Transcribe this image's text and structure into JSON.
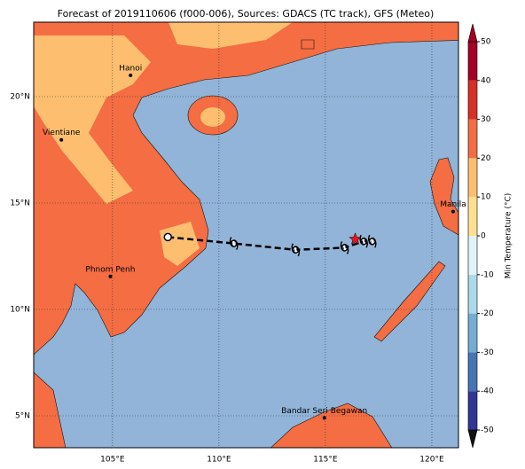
{
  "title": "Forecast of 2019110606 (f000-006), Sources: GDACS (TC track), GFS (Meteo)",
  "map": {
    "xlim": [
      101.3,
      121.25
    ],
    "ylim": [
      3.5,
      23.5
    ],
    "xticks": [
      {
        "value": 105,
        "label": "105°E"
      },
      {
        "value": 110,
        "label": "110°E"
      },
      {
        "value": 115,
        "label": "115°E"
      },
      {
        "value": 120,
        "label": "120°E"
      }
    ],
    "yticks": [
      {
        "value": 5,
        "label": "5°N"
      },
      {
        "value": 10,
        "label": "10°N"
      },
      {
        "value": 15,
        "label": "15°N"
      },
      {
        "value": 20,
        "label": "20°N"
      }
    ],
    "grid": true,
    "ocean_color": "#91b4d8",
    "cities": [
      {
        "name": "Hanoi",
        "lon": 105.85,
        "lat": 21.0
      },
      {
        "name": "Vientiane",
        "lon": 102.6,
        "lat": 17.97
      },
      {
        "name": "Phnom Penh",
        "lon": 104.9,
        "lat": 11.55
      },
      {
        "name": "Manila",
        "lon": 121.0,
        "lat": 14.6
      },
      {
        "name": "Bandar Seri Begawan",
        "lon": 114.95,
        "lat": 4.9
      }
    ],
    "track": {
      "lon": [
        107.6,
        110.7,
        113.6,
        115.9,
        116.8,
        117.2
      ],
      "lat": [
        13.4,
        13.1,
        12.8,
        12.9,
        13.2,
        13.2
      ],
      "color": "#000000"
    },
    "current_position": {
      "lon": 116.4,
      "lat": 13.3,
      "color": "#e8141c"
    }
  },
  "colorbar": {
    "label": "Min Temperature (°C)",
    "lim": [
      -50,
      50
    ],
    "ticks": [
      -50,
      -40,
      -30,
      -20,
      -10,
      0,
      10,
      20,
      30,
      40,
      50
    ],
    "colors": [
      "#313695",
      "#4575b4",
      "#74add1",
      "#abd9e9",
      "#e0f3f8",
      "#fee090",
      "#fdbf6f",
      "#f46d43",
      "#d73027",
      "#a50026"
    ]
  }
}
